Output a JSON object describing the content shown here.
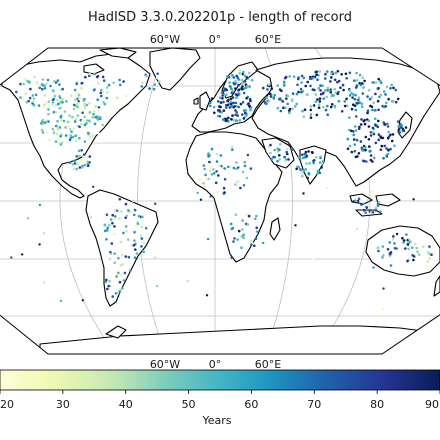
{
  "title": "HadISD 3.3.0.202201p - length of record",
  "map": {
    "projection": "robinson",
    "gridline_labels_top": [
      "60°W",
      "0°",
      "60°E"
    ],
    "gridline_labels_bottom": [
      "60°W",
      "0°",
      "60°E"
    ],
    "gridline_color": "#b8b8b8",
    "coastline_color": "#000000"
  },
  "colorbar": {
    "label": "Years",
    "ticks": [
      "20",
      "30",
      "40",
      "50",
      "60",
      "70",
      "80",
      "90"
    ],
    "min": 20,
    "max": 90,
    "colormap": "YlGnBu",
    "colors": [
      "#ffffd9",
      "#edf8b1",
      "#c7e9b4",
      "#7fcdbb",
      "#41b6c4",
      "#1d91c0",
      "#225ea8",
      "#253494",
      "#081d58"
    ]
  },
  "legend_text": {
    "years_axis": "Years"
  }
}
